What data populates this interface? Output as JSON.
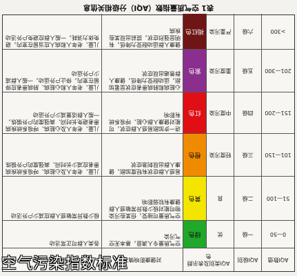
{
  "title": "表1 空气质量指数（AQI）分级相关信息",
  "columns": [
    "AQI数值",
    "AQI级别",
    "AQI类别及表示颜色",
    "",
    "对健康影响情况",
    "建议采取的措施"
  ],
  "rows": [
    {
      "range": "0—50",
      "level": "一级",
      "category": "优",
      "color_name": "绿色",
      "color": "#1fa82a",
      "health": "空气质量令人满意，基本无空气污染",
      "advice": "各类人群可正常活动"
    },
    {
      "range": "51—100",
      "level": "二级",
      "category": "良",
      "color_name": "黄色",
      "color": "#f3e500",
      "health": "空气质量可接受，但某些污染物可能对极少数异常敏感人群健康有较弱影响",
      "advice": "极少数异常敏感人群应减少户外活动"
    },
    {
      "range": "101—150",
      "level": "三级",
      "category": "轻度污染",
      "color_name": "橙色",
      "color": "#f08a00",
      "health": "易感人群症状有轻度加剧，健康人群出现刺激症状",
      "advice": "儿童、老年人及心脏病、呼吸系统疾病患者应减少长时间、高强度的户外锻炼"
    },
    {
      "range": "151—200",
      "level": "四级",
      "category": "中度污染",
      "color_name": "红色",
      "color": "#e00f16",
      "health": "进一步加剧易感人群症状，可能对健康人群心脏、呼吸系统有影响",
      "advice": "儿童、老年人及心脏病、呼吸系统疾病患者避免长时间、高强度的户外锻炼，一般人群适量减少户外运动"
    },
    {
      "range": "201—300",
      "level": "五级",
      "category": "重度污染",
      "color_name": "紫色",
      "color": "#8b2f8f",
      "health": "心脏病和肺病患者症状显著加剧，运动耐受力降低，健康人群普遍出现症状",
      "advice": "儿童、老年人和心脏病、肺病患者应停留在室内，停止户外运动，一般人群减少户外运动"
    },
    {
      "range": ">300",
      "level": "六级",
      "category": "严重污染",
      "color_name": "褐红色",
      "color": "#6e1515",
      "health": "健康人群运动耐受力降低，有明显强烈症状，提前出现某些疾病",
      "advice": "儿童、老年人和病人应当留在室内，避免体力消耗，一般人群应避免户外活动"
    }
  ],
  "caption": "空气污染指数标准"
}
